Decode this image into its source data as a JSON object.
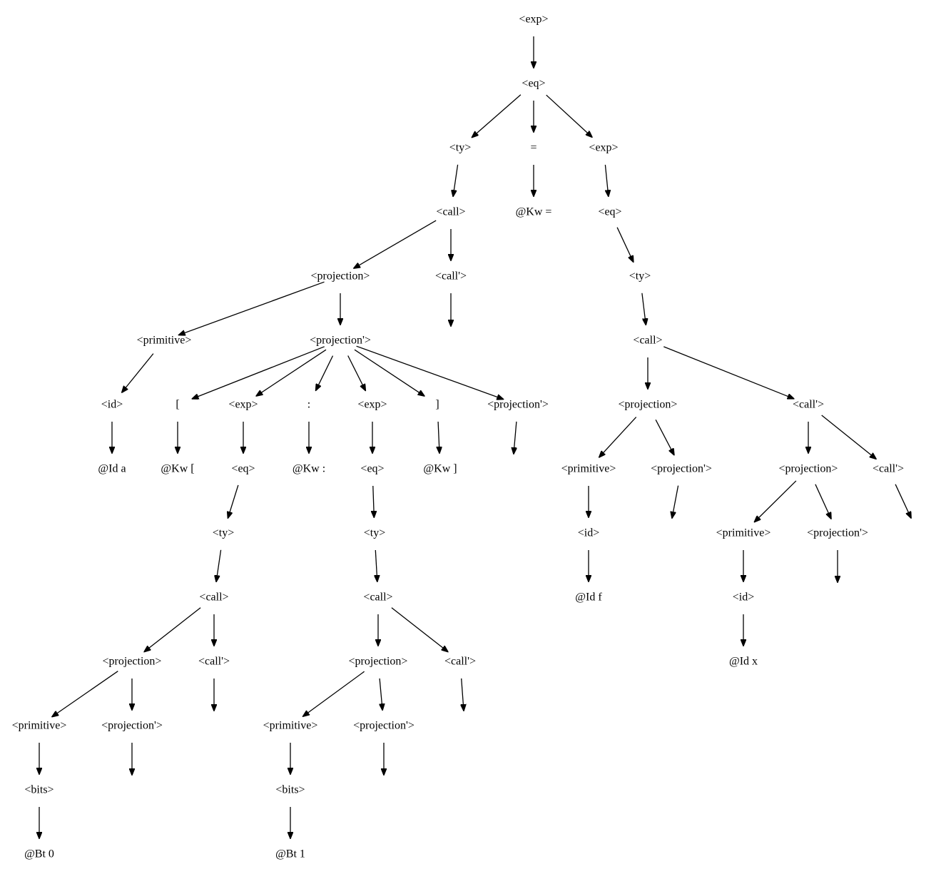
{
  "diagram": {
    "type": "parse-tree",
    "colors": {
      "ink": "#000000",
      "background": "#ffffff"
    },
    "nodes": [
      {
        "id": "n1",
        "label": "<exp>"
      },
      {
        "id": "n2",
        "label": "<eq>"
      },
      {
        "id": "n3",
        "label": "<ty>"
      },
      {
        "id": "n4",
        "label": "="
      },
      {
        "id": "n5",
        "label": "<exp>"
      },
      {
        "id": "n6",
        "label": "<call>"
      },
      {
        "id": "n7",
        "label": "@Kw ="
      },
      {
        "id": "n8",
        "label": "<eq>"
      },
      {
        "id": "n9",
        "label": "<projection>"
      },
      {
        "id": "n10",
        "label": "<call'>"
      },
      {
        "id": "n11",
        "label": "<ty>"
      },
      {
        "id": "n12",
        "label": "<primitive>"
      },
      {
        "id": "n13",
        "label": "<projection'>"
      },
      {
        "id": "n14",
        "label": "<call>"
      },
      {
        "id": "n15",
        "label": "<id>"
      },
      {
        "id": "n16",
        "label": "["
      },
      {
        "id": "n17",
        "label": "<exp>"
      },
      {
        "id": "n18",
        "label": ":"
      },
      {
        "id": "n19",
        "label": "<exp>"
      },
      {
        "id": "n20",
        "label": "]"
      },
      {
        "id": "n21",
        "label": "<projection'>"
      },
      {
        "id": "n22",
        "label": "<projection>"
      },
      {
        "id": "n23",
        "label": "<call'>"
      },
      {
        "id": "n24",
        "label": "@Id a"
      },
      {
        "id": "n25",
        "label": "@Kw ["
      },
      {
        "id": "n26",
        "label": "<eq>"
      },
      {
        "id": "n27",
        "label": "@Kw :"
      },
      {
        "id": "n28",
        "label": "<eq>"
      },
      {
        "id": "n29",
        "label": "@Kw ]"
      },
      {
        "id": "n30",
        "label": "<primitive>"
      },
      {
        "id": "n31",
        "label": "<projection'>"
      },
      {
        "id": "n32",
        "label": "<projection>"
      },
      {
        "id": "n33",
        "label": "<call'>"
      },
      {
        "id": "n34",
        "label": "<ty>"
      },
      {
        "id": "n35",
        "label": "<ty>"
      },
      {
        "id": "n36",
        "label": "<id>"
      },
      {
        "id": "n37",
        "label": "<primitive>"
      },
      {
        "id": "n38",
        "label": "<projection'>"
      },
      {
        "id": "n39",
        "label": "<call>"
      },
      {
        "id": "n40",
        "label": "<call>"
      },
      {
        "id": "n41",
        "label": "@Id f"
      },
      {
        "id": "n42",
        "label": "<id>"
      },
      {
        "id": "n43",
        "label": "<projection>"
      },
      {
        "id": "n44",
        "label": "<call'>"
      },
      {
        "id": "n45",
        "label": "<projection>"
      },
      {
        "id": "n46",
        "label": "<call'>"
      },
      {
        "id": "n47",
        "label": "@Id x"
      },
      {
        "id": "n48",
        "label": "<primitive>"
      },
      {
        "id": "n49",
        "label": "<projection'>"
      },
      {
        "id": "n50",
        "label": "<primitive>"
      },
      {
        "id": "n51",
        "label": "<projection'>"
      },
      {
        "id": "n52",
        "label": "<bits>"
      },
      {
        "id": "n53",
        "label": "<bits>"
      },
      {
        "id": "n54",
        "label": "@Bt 0"
      },
      {
        "id": "n55",
        "label": "@Bt 1"
      }
    ],
    "edges": [
      {
        "from": "n1",
        "to": "n2"
      },
      {
        "from": "n2",
        "to": "n3"
      },
      {
        "from": "n2",
        "to": "n4"
      },
      {
        "from": "n2",
        "to": "n5"
      },
      {
        "from": "n3",
        "to": "n6"
      },
      {
        "from": "n4",
        "to": "n7"
      },
      {
        "from": "n5",
        "to": "n8"
      },
      {
        "from": "n6",
        "to": "n9"
      },
      {
        "from": "n6",
        "to": "n10"
      },
      {
        "from": "n8",
        "to": "n11"
      },
      {
        "from": "n9",
        "to": "n12"
      },
      {
        "from": "n9",
        "to": "n13"
      },
      {
        "from": "n10",
        "to": null
      },
      {
        "from": "n11",
        "to": "n14"
      },
      {
        "from": "n12",
        "to": "n15"
      },
      {
        "from": "n13",
        "to": "n16"
      },
      {
        "from": "n13",
        "to": "n17"
      },
      {
        "from": "n13",
        "to": "n18"
      },
      {
        "from": "n13",
        "to": "n19"
      },
      {
        "from": "n13",
        "to": "n20"
      },
      {
        "from": "n13",
        "to": "n21"
      },
      {
        "from": "n14",
        "to": "n22"
      },
      {
        "from": "n14",
        "to": "n23"
      },
      {
        "from": "n15",
        "to": "n24"
      },
      {
        "from": "n16",
        "to": "n25"
      },
      {
        "from": "n17",
        "to": "n26"
      },
      {
        "from": "n18",
        "to": "n27"
      },
      {
        "from": "n19",
        "to": "n28"
      },
      {
        "from": "n20",
        "to": "n29"
      },
      {
        "from": "n21",
        "to": null
      },
      {
        "from": "n22",
        "to": "n30"
      },
      {
        "from": "n22",
        "to": "n31"
      },
      {
        "from": "n23",
        "to": "n32"
      },
      {
        "from": "n23",
        "to": "n33"
      },
      {
        "from": "n26",
        "to": "n34"
      },
      {
        "from": "n28",
        "to": "n35"
      },
      {
        "from": "n30",
        "to": "n36"
      },
      {
        "from": "n31",
        "to": null
      },
      {
        "from": "n32",
        "to": "n37"
      },
      {
        "from": "n32",
        "to": "n38"
      },
      {
        "from": "n33",
        "to": null
      },
      {
        "from": "n34",
        "to": "n39"
      },
      {
        "from": "n35",
        "to": "n40"
      },
      {
        "from": "n36",
        "to": "n41"
      },
      {
        "from": "n37",
        "to": "n42"
      },
      {
        "from": "n38",
        "to": null
      },
      {
        "from": "n39",
        "to": "n43"
      },
      {
        "from": "n39",
        "to": "n44"
      },
      {
        "from": "n40",
        "to": "n45"
      },
      {
        "from": "n40",
        "to": "n46"
      },
      {
        "from": "n42",
        "to": "n47"
      },
      {
        "from": "n43",
        "to": "n48"
      },
      {
        "from": "n43",
        "to": "n49"
      },
      {
        "from": "n44",
        "to": null
      },
      {
        "from": "n45",
        "to": "n50"
      },
      {
        "from": "n45",
        "to": "n51"
      },
      {
        "from": "n46",
        "to": null
      },
      {
        "from": "n48",
        "to": "n52"
      },
      {
        "from": "n49",
        "to": null
      },
      {
        "from": "n50",
        "to": "n53"
      },
      {
        "from": "n51",
        "to": null
      },
      {
        "from": "n52",
        "to": "n54"
      },
      {
        "from": "n53",
        "to": "n55"
      }
    ]
  }
}
